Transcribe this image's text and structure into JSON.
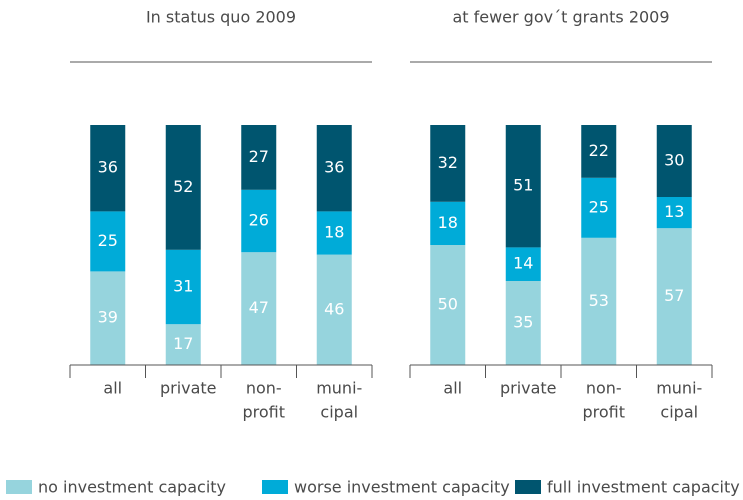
{
  "chart_data": [
    {
      "type": "stacked_bar",
      "title": "In status quo 2009",
      "categories": [
        "all",
        "private",
        [
          "non-",
          "profit"
        ],
        [
          "muni-",
          "cipal"
        ]
      ],
      "ylim": [
        0,
        100
      ],
      "series": [
        {
          "name": "no investment capacity",
          "color": "#96d4dd",
          "values": [
            39,
            17,
            47,
            46
          ]
        },
        {
          "name": "worse investment capacity",
          "color": "#00abd8",
          "values": [
            25,
            31,
            26,
            18
          ]
        },
        {
          "name": "full investment capacity",
          "color": "#00556f",
          "values": [
            36,
            52,
            27,
            36
          ]
        }
      ]
    },
    {
      "type": "stacked_bar",
      "title": "at fewer gov´t grants 2009",
      "categories": [
        "all",
        "private",
        [
          "non-",
          "profit"
        ],
        [
          "muni-",
          "cipal"
        ]
      ],
      "ylim": [
        0,
        100
      ],
      "series": [
        {
          "name": "no investment capacity",
          "color": "#96d4dd",
          "values": [
            50,
            35,
            53,
            57
          ]
        },
        {
          "name": "worse investment capacity",
          "color": "#00abd8",
          "values": [
            18,
            14,
            25,
            13
          ]
        },
        {
          "name": "full investment capacity",
          "color": "#00556f",
          "values": [
            32,
            51,
            22,
            30
          ]
        }
      ]
    }
  ]
}
